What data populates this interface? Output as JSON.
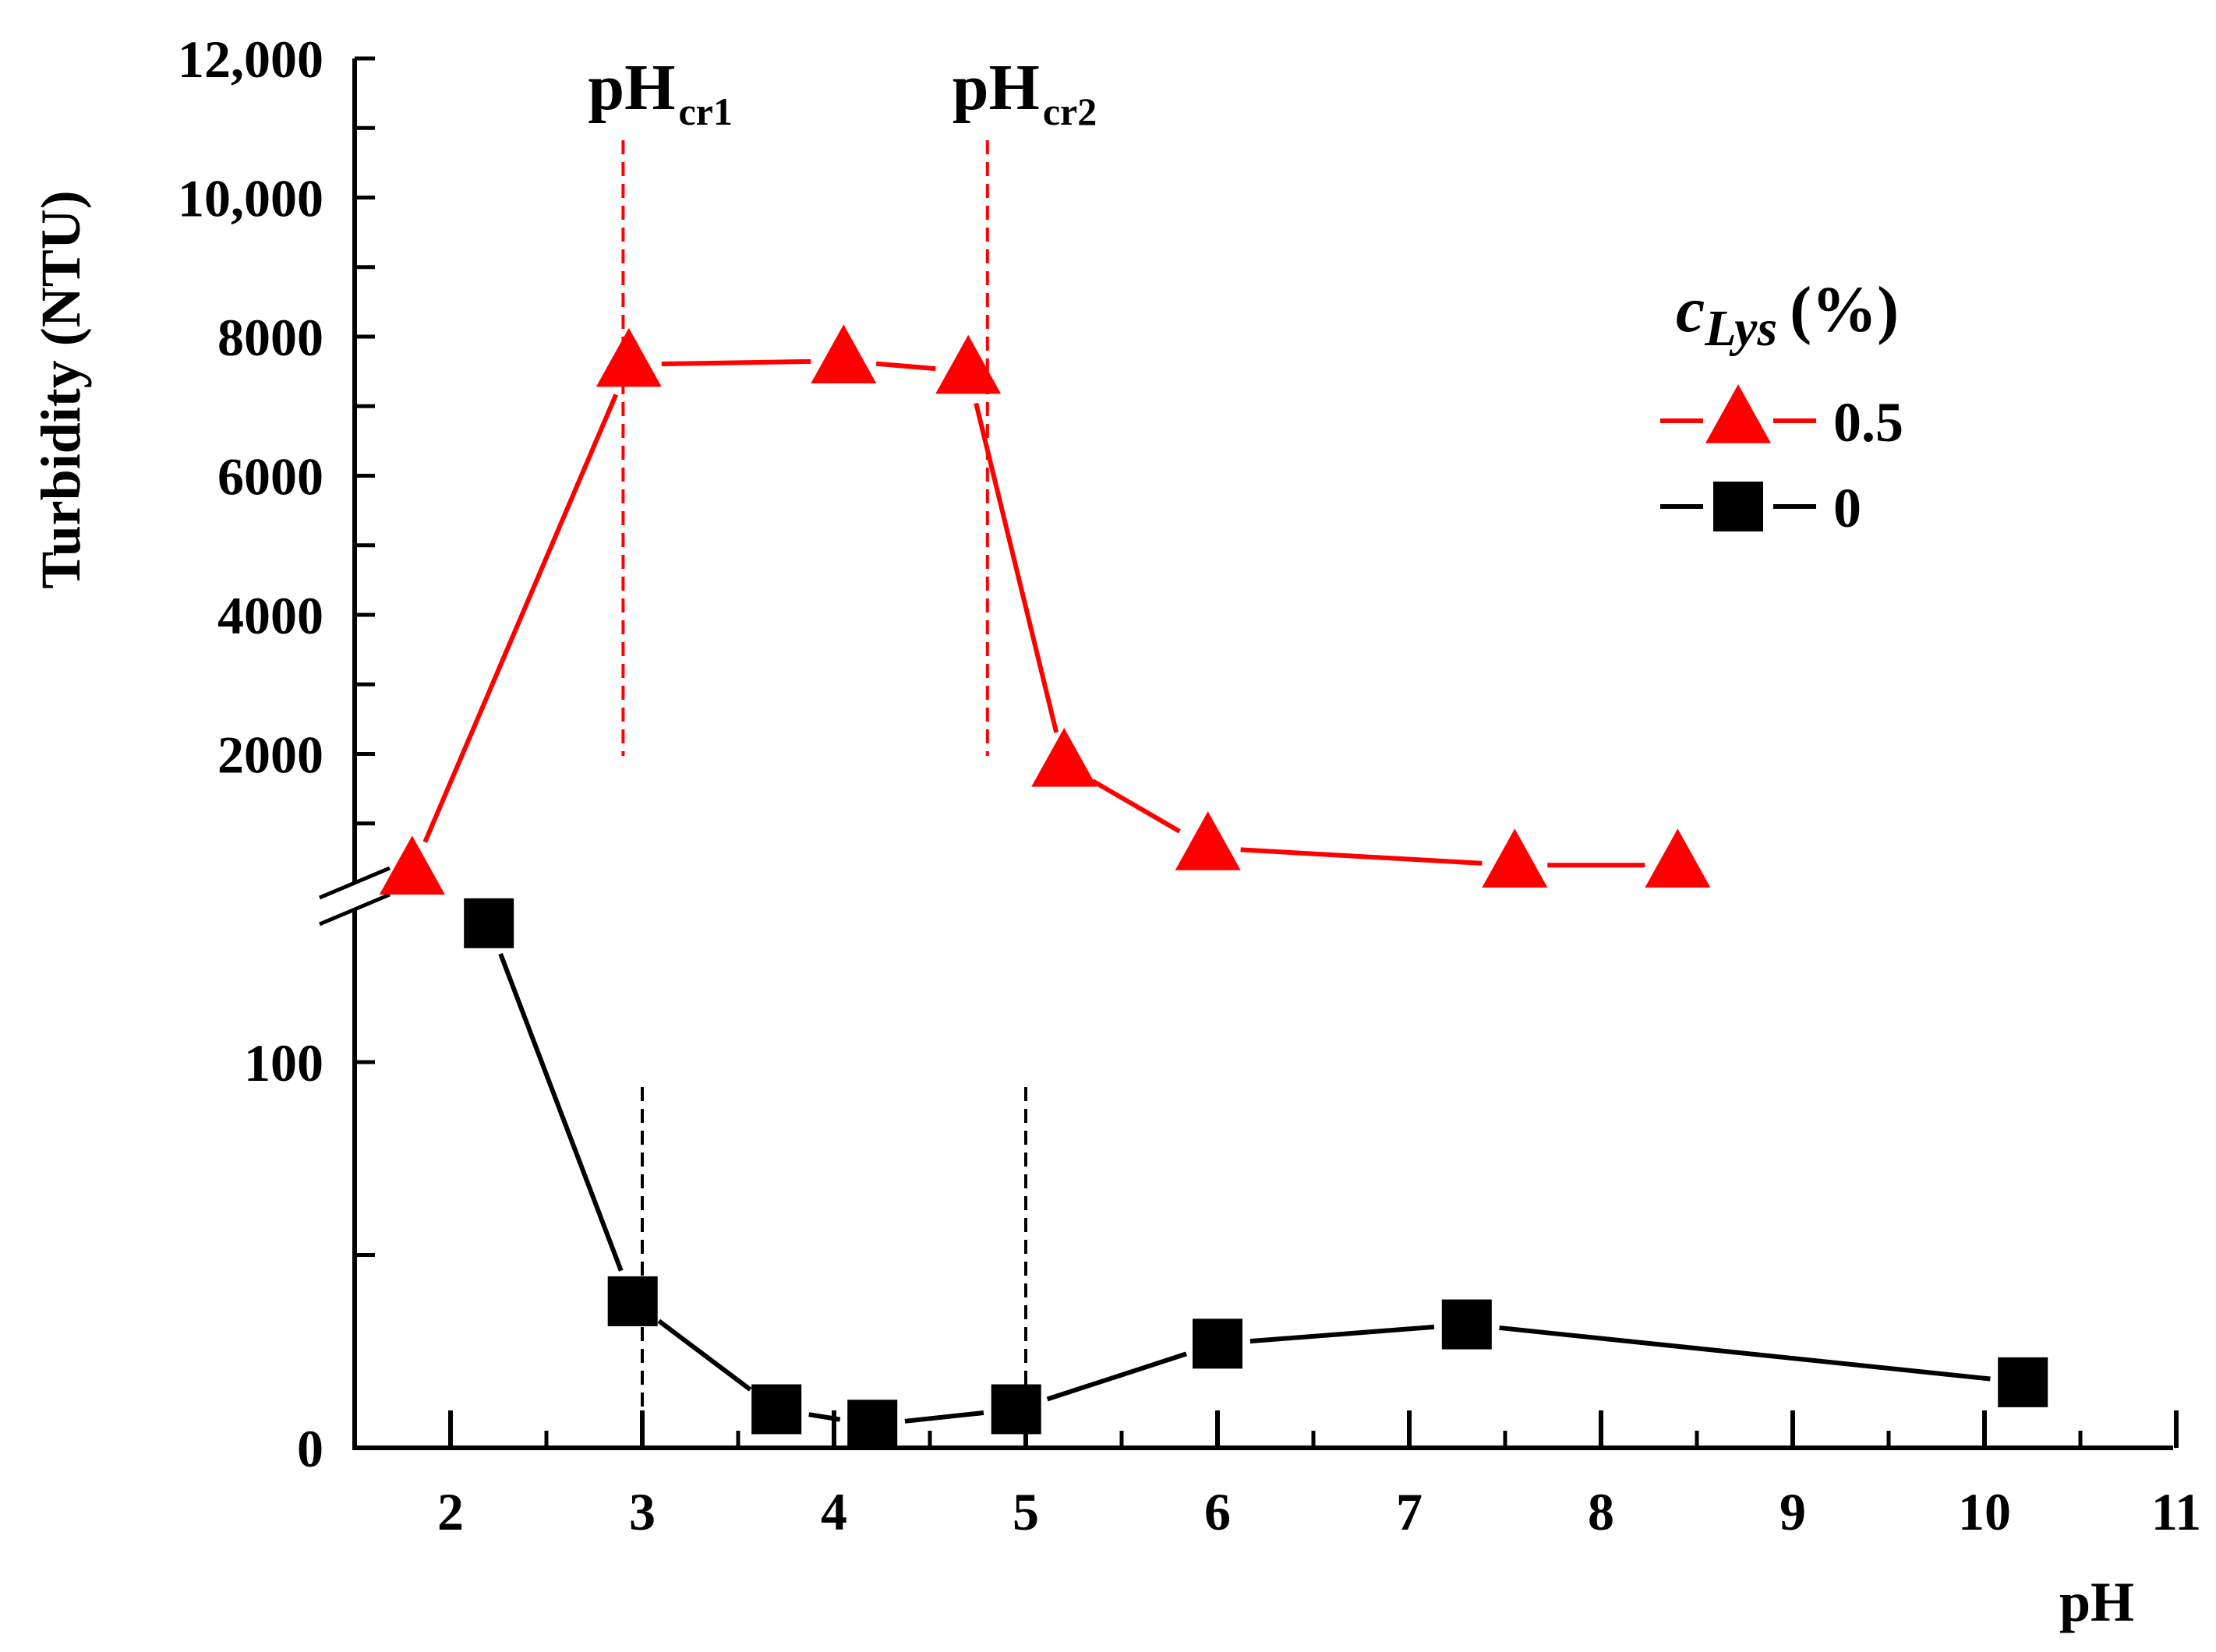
{
  "chart_data": {
    "type": "line",
    "title": "",
    "xlabel": "pH",
    "ylabel": "Turbidity (NTU)",
    "xlim": [
      1.5,
      11
    ],
    "x_ticks": [
      "2",
      "3",
      "4",
      "5",
      "6",
      "7",
      "8",
      "9",
      "10",
      "11"
    ],
    "y_break": true,
    "y_lower": {
      "range": [
        0,
        140
      ],
      "ticks": [
        "0",
        "100"
      ]
    },
    "y_upper": {
      "range": [
        0,
        12000
      ],
      "ticks": [
        "2000",
        "4000",
        "6000",
        "8000",
        "10,000",
        "12,000"
      ]
    },
    "legend": {
      "title_main": "c",
      "title_sub": "Lys",
      "title_suffix": "(%)",
      "position": "right"
    },
    "series": [
      {
        "name": "0.5",
        "color": "#ff0000",
        "marker": "triangle",
        "axis": "upper",
        "points": [
          {
            "x": 1.8,
            "y": 300
          },
          {
            "x": 2.93,
            "y": 7600
          },
          {
            "x": 4.05,
            "y": 7650
          },
          {
            "x": 4.7,
            "y": 7500
          },
          {
            "x": 5.2,
            "y": 1850
          },
          {
            "x": 5.95,
            "y": 650
          },
          {
            "x": 7.55,
            "y": 400
          },
          {
            "x": 8.4,
            "y": 400
          }
        ]
      },
      {
        "name": "0",
        "color": "#000000",
        "marker": "square",
        "axis": "lower",
        "points": [
          {
            "x": 2.2,
            "y": 136
          },
          {
            "x": 2.95,
            "y": 38
          },
          {
            "x": 3.7,
            "y": 10
          },
          {
            "x": 4.2,
            "y": 6
          },
          {
            "x": 4.95,
            "y": 10
          },
          {
            "x": 6.0,
            "y": 27
          },
          {
            "x": 7.3,
            "y": 32
          },
          {
            "x": 10.2,
            "y": 17
          }
        ]
      }
    ],
    "annotations": [
      {
        "text": "pH",
        "sub": "cr1",
        "x_upper": 2.9,
        "x_lower": 3.0
      },
      {
        "text": "pH",
        "sub": "cr2",
        "x_upper": 4.8,
        "x_lower": 5.0
      }
    ]
  },
  "colors": {
    "red": "#ff0000",
    "black": "#000000"
  }
}
